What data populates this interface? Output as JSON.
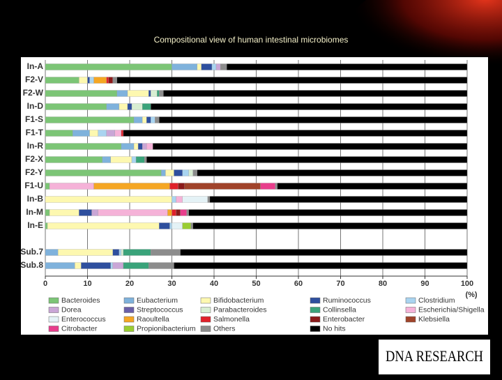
{
  "logo": "DNA RESEARCH",
  "chart_data": {
    "type": "bar",
    "orientation": "horizontal",
    "stacked": true,
    "title": "Compositional view of human intestinal microbiomes",
    "x_label": "(%)",
    "categories": [
      "In-A",
      "F2-V",
      "F2-W",
      "In-D",
      "F1-S",
      "F1-T",
      "In-R",
      "F2-X",
      "F2-Y",
      "F1-U",
      "In-B",
      "In-M",
      "In-E",
      "Sub.7",
      "Sub.8"
    ],
    "xlim": [
      0,
      100
    ],
    "xticks": [
      0,
      10,
      20,
      30,
      40,
      50,
      60,
      70,
      80,
      90,
      100
    ],
    "grid": true,
    "series": [
      {
        "name": "Bacteroides",
        "color": "#7cc576",
        "values": [
          30,
          8,
          17,
          14.5,
          21,
          6.5,
          18,
          13.5,
          27.5,
          1,
          0,
          1,
          0.5,
          0,
          0
        ]
      },
      {
        "name": "Eubacterium",
        "color": "#7fb2dc",
        "values": [
          6,
          0,
          2.5,
          3,
          2,
          4,
          3,
          2,
          1,
          0,
          0,
          0,
          0,
          3,
          7
        ]
      },
      {
        "name": "Bifidobacterium",
        "color": "#fdf8b0",
        "values": [
          1,
          2,
          5,
          2,
          1,
          2,
          1,
          5,
          2,
          0,
          30,
          7,
          26.5,
          13,
          1.5
        ]
      },
      {
        "name": "Ruminococcus",
        "color": "#2e4f9e",
        "values": [
          2.5,
          0.5,
          0.5,
          1,
          1,
          0,
          1,
          0,
          2,
          0,
          0,
          3,
          2.5,
          1.5,
          7
        ]
      },
      {
        "name": "Clostridium",
        "color": "#a9d4f0",
        "values": [
          1,
          1,
          0,
          0,
          1,
          2,
          0,
          1,
          1.5,
          0,
          1,
          0,
          0.5,
          0.5,
          0.5
        ]
      },
      {
        "name": "Dorea",
        "color": "#c9a6d6",
        "values": [
          1,
          0,
          0,
          0,
          0,
          2,
          1,
          0,
          0,
          0,
          0,
          1.5,
          0,
          0,
          2.5
        ]
      },
      {
        "name": "Streptococcus",
        "color": "#6a5fa8",
        "values": [
          0,
          0,
          0,
          0,
          0,
          0,
          0,
          0,
          0,
          0,
          0,
          0,
          0,
          0,
          0
        ]
      },
      {
        "name": "Parabacteroides",
        "color": "#d8eed2",
        "values": [
          0,
          0,
          1.5,
          2.5,
          0,
          0,
          0,
          0,
          1,
          0,
          0,
          0,
          0,
          0.5,
          0
        ]
      },
      {
        "name": "Collinsella",
        "color": "#3aa37a",
        "values": [
          0,
          0,
          0.5,
          2,
          0,
          0,
          0,
          2,
          0,
          0,
          0,
          0,
          0,
          6.5,
          6
        ]
      },
      {
        "name": "Escherichia/Shigella",
        "color": "#f5b2d8",
        "values": [
          0,
          0,
          0,
          0,
          0,
          1.5,
          1.5,
          0,
          0,
          10.5,
          1.5,
          16.5,
          0,
          0,
          0
        ]
      },
      {
        "name": "Enterococcus",
        "color": "#e4f2f6",
        "values": [
          0,
          0,
          0,
          0,
          0,
          0,
          0,
          0,
          0,
          0,
          6,
          0,
          2.5,
          0,
          0
        ]
      },
      {
        "name": "Raoultella",
        "color": "#f5a623",
        "values": [
          0,
          3,
          0,
          0,
          0,
          0,
          0,
          0,
          0,
          18,
          0,
          1,
          0,
          0,
          0
        ]
      },
      {
        "name": "Salmonella",
        "color": "#e0202a",
        "values": [
          0,
          0.5,
          0,
          0,
          0,
          0.5,
          0,
          0,
          0,
          2,
          0,
          1,
          0,
          0,
          0
        ]
      },
      {
        "name": "Enterobacter",
        "color": "#8b1a1a",
        "values": [
          0,
          1,
          0,
          0,
          0,
          0,
          0,
          0,
          0,
          1.5,
          0,
          1,
          0,
          0,
          0
        ]
      },
      {
        "name": "Klebsiella",
        "color": "#a0432a",
        "values": [
          0,
          0,
          0,
          0,
          0,
          0,
          0,
          0,
          0,
          18,
          0,
          0,
          0,
          0,
          0
        ]
      },
      {
        "name": "Citrobacter",
        "color": "#e83e8c",
        "values": [
          0,
          0,
          0,
          0,
          0,
          0,
          0,
          0,
          0,
          3.5,
          0,
          1.5,
          0,
          0,
          0
        ]
      },
      {
        "name": "Propionibacterium",
        "color": "#9acd32",
        "values": [
          0,
          0,
          0,
          0,
          0,
          0,
          0,
          0,
          0,
          0,
          0,
          0,
          2,
          0,
          0
        ]
      },
      {
        "name": "Others",
        "color": "#8c8c8c",
        "values": [
          1.5,
          1,
          1,
          0,
          1,
          0,
          0,
          0.5,
          1,
          0.5,
          0.5,
          0.5,
          0.5,
          7,
          6
        ]
      },
      {
        "name": "No hits",
        "color": "#000000",
        "values": [
          57,
          83,
          72,
          75,
          73,
          81.5,
          74.5,
          76,
          64,
          45,
          61,
          66,
          65,
          68,
          69.5
        ]
      }
    ]
  }
}
